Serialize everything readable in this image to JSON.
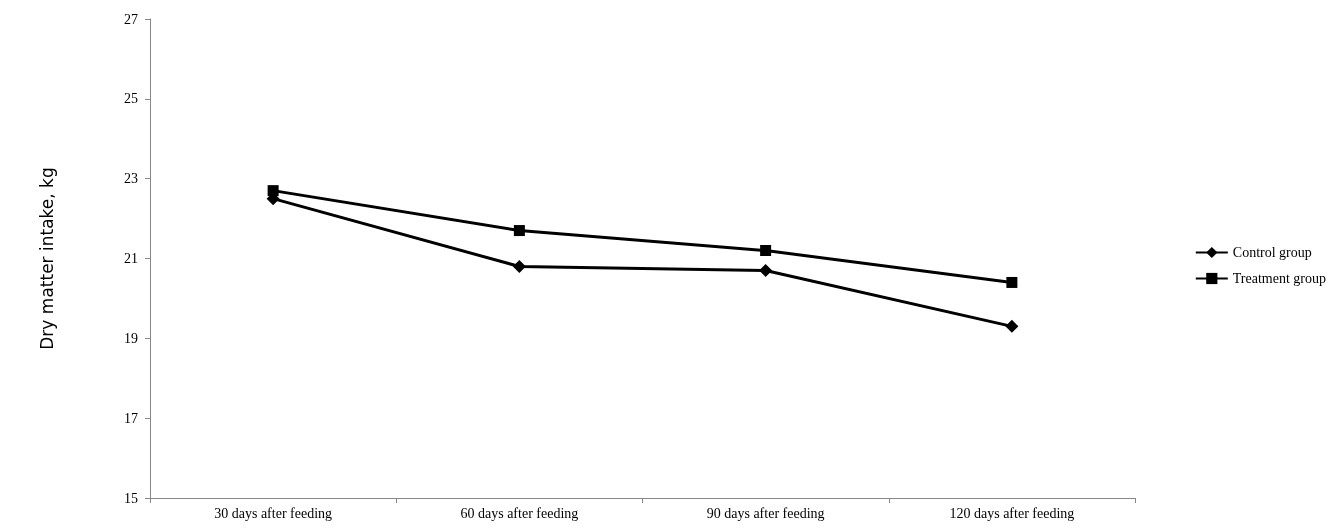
{
  "chart_data": {
    "type": "line",
    "ylabel": "Dry matter intake, kg",
    "categories": [
      "30 days after feeding",
      "60 days after feeding",
      "90 days after feeding",
      "120 days after feeding"
    ],
    "series": [
      {
        "name": "Control group",
        "color": "#000000",
        "marker": "diamond",
        "values": [
          22.5,
          20.8,
          20.7,
          19.3
        ]
      },
      {
        "name": "Treatment group",
        "color": "#000000",
        "marker": "square",
        "values": [
          22.7,
          21.7,
          21.2,
          20.4
        ]
      }
    ],
    "ylim": [
      15,
      27
    ],
    "yticks": [
      15,
      17,
      19,
      21,
      23,
      25,
      27
    ],
    "grid": false,
    "legend": "right",
    "line_style": "solid"
  }
}
